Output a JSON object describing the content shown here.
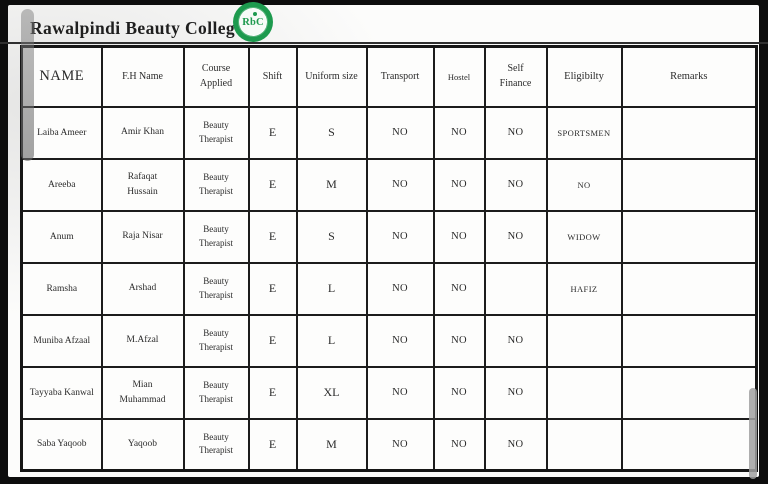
{
  "page": {
    "title": "Rawalpindi Beauty College",
    "logo_text": "RbC"
  },
  "colors": {
    "logo_green": "#1d9a4e",
    "table_border": "#1c1c1c",
    "page_background": "#fcfcfb"
  },
  "table": {
    "headers": [
      "NAME",
      "F.H Name",
      "Course Applied",
      "Shift",
      "Uniform size",
      "Transport",
      "Hostel",
      "Self Finance",
      "Eligibilty",
      "Remarks"
    ],
    "rows": [
      [
        "Laiba Ameer",
        "Amir Khan",
        "Beauty Therapist",
        "E",
        "S",
        "NO",
        "NO",
        "NO",
        "SPORTSMEN",
        ""
      ],
      [
        "Areeba",
        "Rafaqat Hussain",
        "Beauty Therapist",
        "E",
        "M",
        "NO",
        "NO",
        "NO",
        "NO",
        ""
      ],
      [
        "Anum",
        "Raja Nisar",
        "Beauty Therapist",
        "E",
        "S",
        "NO",
        "NO",
        "NO",
        "WIDOW",
        ""
      ],
      [
        "Ramsha",
        "Arshad",
        "Beauty Therapist",
        "E",
        "L",
        "NO",
        "NO",
        "",
        "HAFIZ",
        ""
      ],
      [
        "Muniba Afzaal",
        "M.Afzal",
        "Beauty Therapist",
        "E",
        "L",
        "NO",
        "NO",
        "NO",
        "",
        ""
      ],
      [
        "Tayyaba Kanwal",
        "Mian Muhammad",
        "Beauty Therapist",
        "E",
        "XL",
        "NO",
        "NO",
        "NO",
        "",
        ""
      ],
      [
        "Saba Yaqoob",
        "Yaqoob",
        "Beauty Therapist",
        "E",
        "M",
        "NO",
        "NO",
        "NO",
        "",
        ""
      ]
    ]
  }
}
